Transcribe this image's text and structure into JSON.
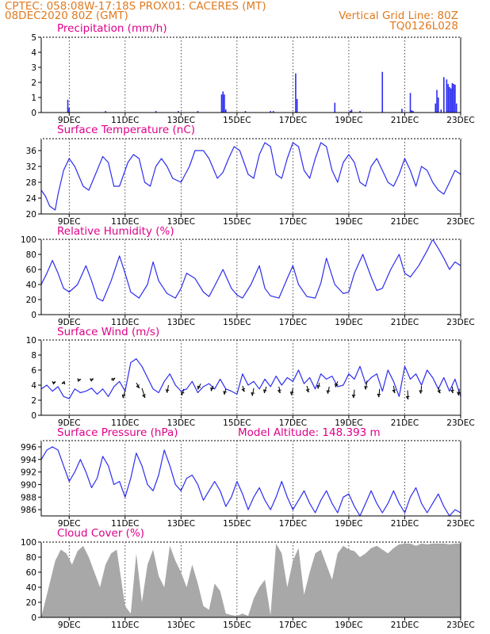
{
  "header": {
    "line1": "CPTEC:   058:08W-17:18S   PROX01: CACERES (MT)",
    "line2_left": "08DEC2020 80Z (GMT)",
    "line2_right": "Vertical Grid Line: 80Z",
    "line3_right": "TQ0126L028"
  },
  "colors": {
    "header": "#e07a1f",
    "title": "#e0008a",
    "series": "#2d2df0",
    "cloud": "#a8a8a8",
    "arrow": "#000000"
  },
  "x_axis": {
    "ticks": [
      "9DEC",
      "11DEC",
      "13DEC",
      "15DEC",
      "17DEC",
      "19DEC",
      "21DEC",
      "23DEC"
    ],
    "tick_positions_days": [
      1,
      3,
      5,
      7,
      9,
      11,
      13,
      15
    ],
    "range_days": [
      0,
      15
    ]
  },
  "chart_data": [
    {
      "id": "precip",
      "type": "bar",
      "title": "Precipitation (mm/h)",
      "ylim": [
        0,
        5
      ],
      "yticks": [
        0,
        1,
        2,
        3,
        4,
        5
      ],
      "x": [
        0.95,
        1.0,
        2.3,
        4.1,
        4.9,
        5.6,
        6.45,
        6.5,
        6.55,
        6.6,
        7.3,
        8.2,
        8.3,
        9.1,
        9.15,
        10.5,
        11.05,
        11.1,
        11.4,
        12.2,
        12.9,
        13.2,
        13.25,
        13.3,
        14.1,
        14.15,
        14.2,
        14.3,
        14.4,
        14.5,
        14.55,
        14.6,
        14.65,
        14.7,
        14.75,
        14.8,
        14.85
      ],
      "values": [
        0.85,
        0.3,
        0.1,
        0.1,
        0.1,
        0.1,
        1.2,
        1.4,
        1.2,
        0.2,
        0.1,
        0.1,
        0.1,
        2.6,
        0.9,
        0.65,
        0.1,
        0.2,
        0.1,
        2.7,
        0.25,
        1.3,
        0.15,
        0.1,
        0.6,
        1.5,
        1.0,
        0.2,
        2.35,
        2.2,
        1.9,
        1.7,
        1.6,
        1.95,
        1.9,
        1.85,
        0.6
      ]
    },
    {
      "id": "temp",
      "type": "line",
      "title": "Surface Temperature (nC)",
      "ylim": [
        20,
        39
      ],
      "yticks": [
        20,
        24,
        28,
        32,
        36
      ],
      "x": [
        0,
        0.15,
        0.3,
        0.5,
        0.6,
        0.8,
        1.0,
        1.2,
        1.5,
        1.7,
        2.0,
        2.2,
        2.4,
        2.6,
        2.8,
        3.1,
        3.3,
        3.5,
        3.7,
        3.9,
        4.1,
        4.3,
        4.5,
        4.7,
        5.0,
        5.3,
        5.5,
        5.8,
        6.0,
        6.3,
        6.5,
        6.7,
        6.9,
        7.1,
        7.4,
        7.6,
        7.8,
        8.0,
        8.2,
        8.4,
        8.6,
        8.8,
        9.0,
        9.2,
        9.4,
        9.6,
        9.8,
        10.0,
        10.2,
        10.4,
        10.6,
        10.8,
        11.0,
        11.2,
        11.4,
        11.6,
        11.8,
        12.0,
        12.2,
        12.4,
        12.6,
        12.8,
        13.0,
        13.2,
        13.4,
        13.6,
        13.8,
        14.0,
        14.2,
        14.4,
        14.6,
        14.8,
        15.0
      ],
      "values": [
        26,
        24.5,
        22,
        21,
        25,
        31,
        34,
        32,
        27,
        26,
        31,
        34.5,
        33,
        27,
        27,
        33,
        35,
        34,
        28,
        27,
        32,
        34,
        32,
        29,
        28,
        32,
        36,
        36,
        34,
        29,
        30.5,
        34,
        37,
        36,
        30,
        29,
        35,
        38,
        37,
        30,
        29,
        34,
        38,
        37,
        31,
        29,
        34,
        38,
        37,
        31,
        28,
        33,
        35,
        33,
        28,
        27,
        32,
        34,
        31,
        28,
        27,
        30,
        34,
        31,
        27,
        32,
        31,
        28,
        26,
        25,
        28,
        31,
        30
      ]
    },
    {
      "id": "rh",
      "type": "line",
      "title": "Relative Humidity (%)",
      "ylim": [
        0,
        100
      ],
      "yticks": [
        0,
        20,
        40,
        60,
        80,
        100
      ],
      "x": [
        0,
        0.2,
        0.4,
        0.6,
        0.8,
        1.0,
        1.3,
        1.6,
        1.8,
        2.0,
        2.2,
        2.5,
        2.8,
        3.0,
        3.2,
        3.5,
        3.8,
        4.0,
        4.2,
        4.5,
        4.8,
        5.0,
        5.2,
        5.5,
        5.8,
        6.0,
        6.2,
        6.5,
        6.8,
        7.0,
        7.2,
        7.5,
        7.8,
        8.0,
        8.2,
        8.5,
        8.8,
        9.0,
        9.2,
        9.5,
        9.8,
        10.0,
        10.2,
        10.5,
        10.8,
        11.0,
        11.2,
        11.5,
        11.8,
        12.0,
        12.2,
        12.5,
        12.8,
        13.0,
        13.2,
        13.5,
        13.8,
        14.0,
        14.2,
        14.4,
        14.6,
        14.8,
        15.0
      ],
      "values": [
        40,
        55,
        72,
        55,
        35,
        30,
        40,
        65,
        45,
        22,
        18,
        45,
        78,
        55,
        30,
        22,
        40,
        70,
        45,
        28,
        22,
        35,
        55,
        48,
        30,
        24,
        38,
        60,
        35,
        26,
        22,
        40,
        65,
        35,
        25,
        22,
        48,
        65,
        40,
        24,
        22,
        42,
        75,
        40,
        28,
        30,
        55,
        80,
        50,
        32,
        35,
        60,
        80,
        55,
        50,
        65,
        85,
        100,
        88,
        75,
        60,
        70,
        65
      ]
    },
    {
      "id": "wind",
      "type": "line",
      "title": "Surface Wind (m/s)",
      "ylim": [
        0,
        10
      ],
      "yticks": [
        0,
        2,
        4,
        6,
        8,
        10
      ],
      "x": [
        0,
        0.2,
        0.4,
        0.6,
        0.8,
        1.0,
        1.2,
        1.4,
        1.6,
        1.8,
        2.0,
        2.2,
        2.4,
        2.6,
        2.8,
        3.0,
        3.2,
        3.4,
        3.6,
        3.8,
        4.0,
        4.2,
        4.4,
        4.6,
        4.8,
        5.0,
        5.2,
        5.4,
        5.6,
        5.8,
        6.0,
        6.2,
        6.4,
        6.6,
        6.8,
        7.0,
        7.2,
        7.4,
        7.6,
        7.8,
        8.0,
        8.2,
        8.4,
        8.6,
        8.8,
        9.0,
        9.2,
        9.4,
        9.6,
        9.8,
        10.0,
        10.2,
        10.4,
        10.6,
        10.8,
        11.0,
        11.2,
        11.4,
        11.6,
        11.8,
        12.0,
        12.2,
        12.4,
        12.6,
        12.8,
        13.0,
        13.2,
        13.4,
        13.6,
        13.8,
        14.0,
        14.2,
        14.4,
        14.6,
        14.8,
        15.0
      ],
      "values": [
        3.5,
        4,
        3.2,
        3.8,
        2.5,
        2.2,
        3.5,
        3,
        3.2,
        3.6,
        2.8,
        3.5,
        2.5,
        3.8,
        4.5,
        3.2,
        7,
        7.5,
        6.5,
        5,
        3.5,
        3,
        4.5,
        5.5,
        4,
        3.2,
        3.5,
        4.5,
        3,
        3.8,
        4.2,
        3.5,
        4.8,
        3.5,
        3.2,
        2.8,
        5.5,
        4,
        4.5,
        3.5,
        4.8,
        3.8,
        5.2,
        4,
        5,
        4.5,
        6,
        4.2,
        5,
        3.5,
        5.5,
        4.8,
        5.2,
        3.8,
        4,
        5.5,
        4.8,
        6.5,
        4.2,
        5,
        5.5,
        3.2,
        6,
        4.5,
        2.5,
        6.5,
        4.8,
        5.5,
        4,
        6,
        5,
        3.5,
        5,
        3.2,
        4.8,
        2.5
      ],
      "arrows": [
        [
          0.4,
          4.3,
          0.5,
          0.2
        ],
        [
          0.85,
          4.3,
          -0.5,
          -0.1
        ],
        [
          1.3,
          4.7,
          0.5,
          0.1
        ],
        [
          1.75,
          4.7,
          0.5,
          0.2
        ],
        [
          2.5,
          4.7,
          0.6,
          0.3
        ],
        [
          3.0,
          3.3,
          -0.3,
          -1.2
        ],
        [
          3.4,
          4.3,
          0.5,
          -0.8
        ],
        [
          3.6,
          3.6,
          0.5,
          -1.5
        ],
        [
          4.55,
          4.0,
          -0.2,
          -1.2
        ],
        [
          5.1,
          3.5,
          -0.3,
          -1.0
        ],
        [
          5.7,
          4.2,
          -0.4,
          -0.9
        ],
        [
          6.15,
          3.9,
          -0.3,
          -0.8
        ],
        [
          6.6,
          3.5,
          -0.2,
          -0.9
        ],
        [
          7.2,
          3.9,
          0.3,
          -0.9
        ],
        [
          7.6,
          3.6,
          -0.2,
          -1.2
        ],
        [
          8.05,
          3.8,
          -0.3,
          -1.0
        ],
        [
          8.5,
          3.8,
          0.2,
          -1.0
        ],
        [
          9.0,
          3.6,
          -0.2,
          -1.1
        ],
        [
          9.5,
          3.9,
          0.3,
          -1.0
        ],
        [
          9.95,
          4.3,
          -0.2,
          -0.9
        ],
        [
          10.3,
          3.8,
          -0.2,
          -1.1
        ],
        [
          10.6,
          4.5,
          -0.3,
          -0.9
        ],
        [
          11.2,
          3.4,
          -0.1,
          -1.3
        ],
        [
          11.65,
          4.6,
          -0.2,
          -1.4
        ],
        [
          12.1,
          3.5,
          -0.1,
          -1.3
        ],
        [
          12.6,
          3.9,
          0.2,
          -1.1
        ],
        [
          13.1,
          3.3,
          0.1,
          -1.4
        ],
        [
          13.6,
          3.9,
          -0.1,
          -1.2
        ],
        [
          14.2,
          3.7,
          0.3,
          -0.9
        ],
        [
          14.7,
          3.8,
          0.1,
          -1.0
        ],
        [
          14.95,
          3.5,
          -0.1,
          -1.0
        ]
      ]
    },
    {
      "id": "pressure",
      "type": "line",
      "title": "Surface Pressure (hPa)",
      "annotation": "Model Altitude: 148.393 m",
      "ylim": [
        985,
        997
      ],
      "yticks": [
        986,
        988,
        990,
        992,
        994,
        996
      ],
      "x": [
        0,
        0.2,
        0.4,
        0.6,
        0.8,
        1.0,
        1.2,
        1.4,
        1.6,
        1.8,
        2.0,
        2.2,
        2.4,
        2.6,
        2.8,
        3.0,
        3.2,
        3.4,
        3.6,
        3.8,
        4.0,
        4.2,
        4.4,
        4.6,
        4.8,
        5.0,
        5.2,
        5.4,
        5.6,
        5.8,
        6.0,
        6.2,
        6.4,
        6.6,
        6.8,
        7.0,
        7.2,
        7.4,
        7.6,
        7.8,
        8.0,
        8.2,
        8.4,
        8.6,
        8.8,
        9.0,
        9.2,
        9.4,
        9.6,
        9.8,
        10.0,
        10.2,
        10.4,
        10.6,
        10.8,
        11.0,
        11.2,
        11.4,
        11.6,
        11.8,
        12.0,
        12.2,
        12.4,
        12.6,
        12.8,
        13.0,
        13.2,
        13.4,
        13.6,
        13.8,
        14.0,
        14.2,
        14.4,
        14.6,
        14.8,
        15.0
      ],
      "values": [
        994,
        995.5,
        996,
        995.5,
        993,
        990.5,
        992,
        994,
        992,
        989.5,
        991,
        994.5,
        993,
        990,
        990.5,
        988,
        991,
        995,
        993,
        990,
        989,
        991.5,
        995.5,
        993,
        990,
        989,
        991,
        991.5,
        990,
        987.5,
        989,
        990.5,
        989,
        986.5,
        988,
        990.5,
        988.5,
        986,
        988,
        989.5,
        987.5,
        986,
        988,
        990.5,
        988,
        986,
        987.5,
        989,
        987,
        985.5,
        987.5,
        989,
        987,
        985.5,
        988,
        988.5,
        986.5,
        985,
        987,
        989,
        987,
        985.5,
        987,
        989,
        987,
        985.5,
        988,
        989.5,
        987,
        985.5,
        987,
        988.5,
        986.5,
        985,
        986,
        985.5
      ]
    },
    {
      "id": "cloud",
      "type": "area",
      "title": "Cloud Cover (%)",
      "ylim": [
        0,
        100
      ],
      "yticks": [
        0,
        20,
        40,
        60,
        80,
        100
      ],
      "x": [
        0,
        0.2,
        0.3,
        0.5,
        0.7,
        0.9,
        1.1,
        1.3,
        1.5,
        1.7,
        1.9,
        2.1,
        2.3,
        2.5,
        2.7,
        2.9,
        3.0,
        3.2,
        3.4,
        3.6,
        3.8,
        4.0,
        4.2,
        4.4,
        4.6,
        4.8,
        5.0,
        5.2,
        5.4,
        5.6,
        5.8,
        6.0,
        6.2,
        6.4,
        6.6,
        6.8,
        7.0,
        7.2,
        7.4,
        7.6,
        7.8,
        8.0,
        8.2,
        8.4,
        8.6,
        8.8,
        9.0,
        9.2,
        9.4,
        9.6,
        9.8,
        10.0,
        10.2,
        10.4,
        10.6,
        10.8,
        11.0,
        11.2,
        11.4,
        11.6,
        11.8,
        12.0,
        12.2,
        12.4,
        12.6,
        12.8,
        13.0,
        13.2,
        13.4,
        13.6,
        13.8,
        14.0,
        14.2,
        14.4,
        14.6,
        14.8,
        15.0
      ],
      "values": [
        0,
        30,
        45,
        75,
        90,
        85,
        70,
        88,
        95,
        80,
        60,
        40,
        70,
        85,
        90,
        40,
        15,
        5,
        85,
        20,
        70,
        90,
        55,
        40,
        95,
        75,
        60,
        40,
        70,
        45,
        15,
        10,
        45,
        35,
        5,
        3,
        2,
        5,
        2,
        25,
        40,
        50,
        3,
        98,
        85,
        40,
        75,
        92,
        30,
        60,
        85,
        90,
        70,
        50,
        85,
        95,
        90,
        88,
        80,
        85,
        92,
        95,
        90,
        85,
        92,
        97,
        98,
        98,
        95,
        98,
        97,
        98,
        98,
        98,
        97,
        98,
        98
      ]
    }
  ]
}
